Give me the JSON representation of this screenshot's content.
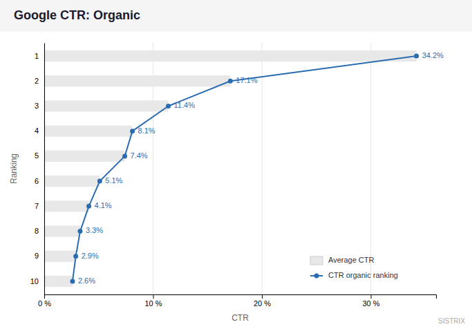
{
  "chart_data": {
    "type": "bar",
    "orientation": "horizontal",
    "title": "Google CTR: Organic",
    "xlabel": "CTR",
    "ylabel": "Ranking",
    "categories": [
      "1",
      "2",
      "3",
      "4",
      "5",
      "6",
      "7",
      "8",
      "9",
      "10"
    ],
    "series": [
      {
        "name": "Average CTR",
        "type": "bar",
        "color": "#e8e8e8",
        "values": [
          34.2,
          17.1,
          11.4,
          8.1,
          7.4,
          5.1,
          4.1,
          3.3,
          2.9,
          2.6
        ]
      },
      {
        "name": "CTR organic ranking",
        "type": "line",
        "color": "#2b6cb0",
        "marker": "circle",
        "values": [
          34.2,
          17.1,
          11.4,
          8.1,
          7.4,
          5.1,
          4.1,
          3.3,
          2.9,
          2.6
        ],
        "value_labels": [
          "34.2%",
          "17.1%",
          "11.4%",
          "8.1%",
          "7.4%",
          "5.1%",
          "4.1%",
          "3.3%",
          "2.9%",
          "2.6%"
        ]
      }
    ],
    "xlim": [
      0,
      36
    ],
    "xticks": [
      {
        "value": 0,
        "label": "0 %"
      },
      {
        "value": 10,
        "label": "10 %"
      },
      {
        "value": 20,
        "label": "20 %"
      },
      {
        "value": 30,
        "label": "30 %"
      }
    ],
    "grid": true,
    "legend": "lower right",
    "data_labels": true,
    "annotations": [
      "SISTRIX"
    ]
  }
}
